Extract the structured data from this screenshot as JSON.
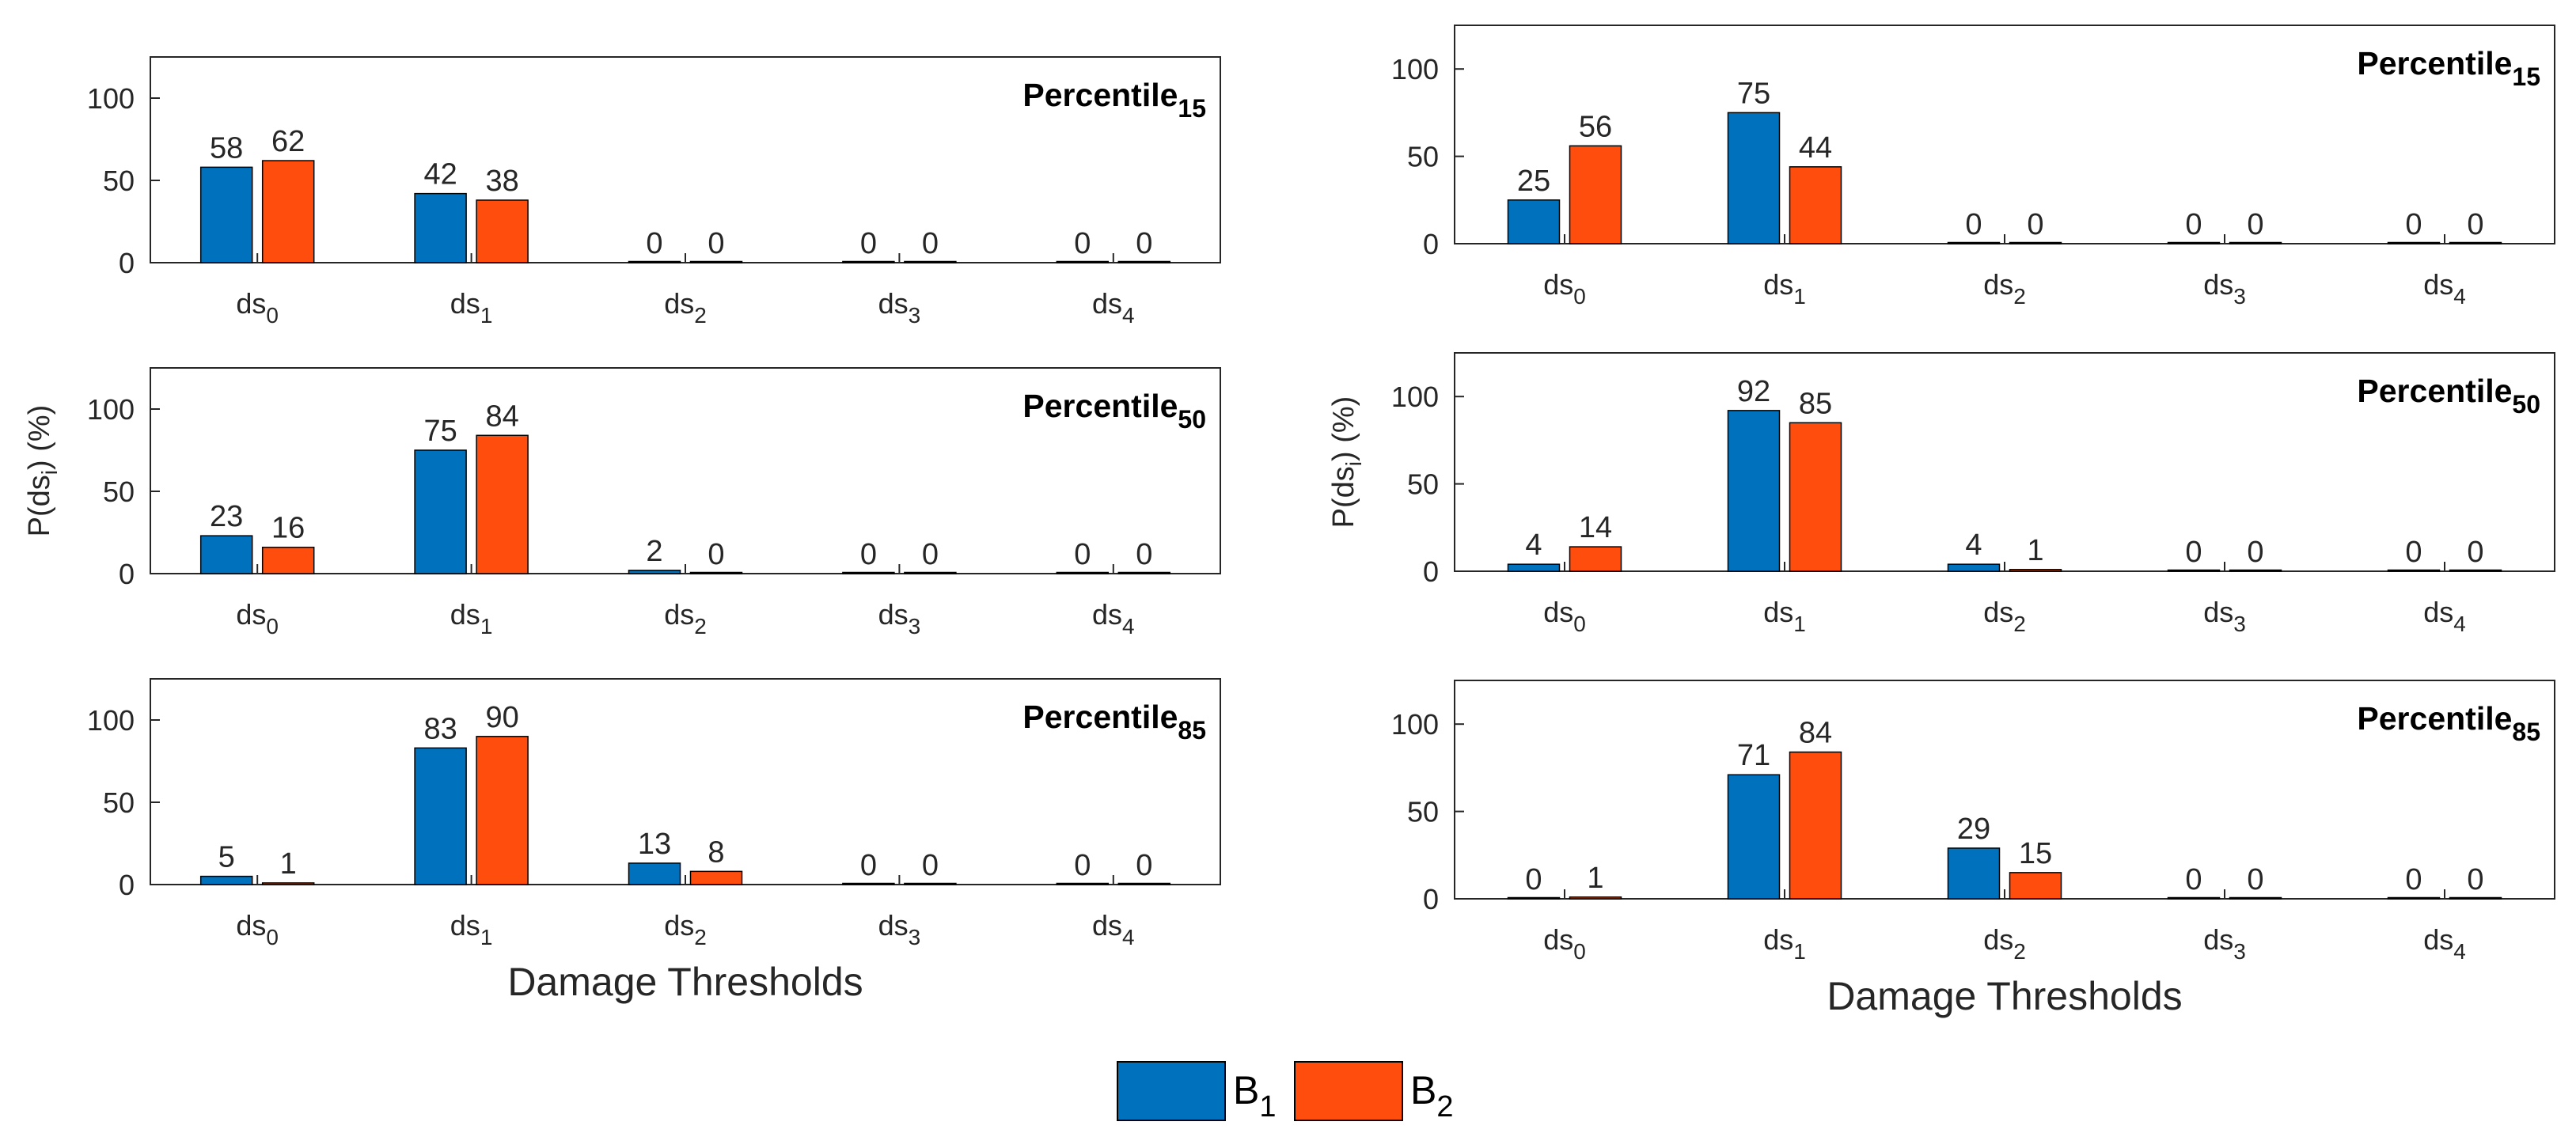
{
  "figure": {
    "bar_colors": {
      "B1": "#0072BD",
      "B2": "#FF4D0D"
    }
  },
  "chart_data": [
    {
      "type": "bar",
      "column": "left",
      "panel": 1,
      "title": "Percentile",
      "title_subscript": "15",
      "categories": [
        {
          "base": "ds",
          "sub": "0"
        },
        {
          "base": "ds",
          "sub": "1"
        },
        {
          "base": "ds",
          "sub": "2"
        },
        {
          "base": "ds",
          "sub": "3"
        },
        {
          "base": "ds",
          "sub": "4"
        }
      ],
      "series": [
        {
          "name": "B1",
          "values": [
            58,
            42,
            0,
            0,
            0
          ]
        },
        {
          "name": "B2",
          "values": [
            62,
            38,
            0,
            0,
            0
          ]
        }
      ],
      "ylim": [
        0,
        125
      ],
      "yticks": [
        0,
        50,
        100
      ],
      "ylabel": "",
      "xlabel": ""
    },
    {
      "type": "bar",
      "column": "left",
      "panel": 2,
      "title": "Percentile",
      "title_subscript": "50",
      "categories": [
        {
          "base": "ds",
          "sub": "0"
        },
        {
          "base": "ds",
          "sub": "1"
        },
        {
          "base": "ds",
          "sub": "2"
        },
        {
          "base": "ds",
          "sub": "3"
        },
        {
          "base": "ds",
          "sub": "4"
        }
      ],
      "series": [
        {
          "name": "B1",
          "values": [
            23,
            75,
            2,
            0,
            0
          ]
        },
        {
          "name": "B2",
          "values": [
            16,
            84,
            0,
            0,
            0
          ]
        }
      ],
      "ylim": [
        0,
        125
      ],
      "yticks": [
        0,
        50,
        100
      ],
      "ylabel": {
        "pre": "P(ds",
        "sub": "i",
        "post": ") (%)"
      },
      "xlabel": ""
    },
    {
      "type": "bar",
      "column": "left",
      "panel": 3,
      "title": "Percentile",
      "title_subscript": "85",
      "categories": [
        {
          "base": "ds",
          "sub": "0"
        },
        {
          "base": "ds",
          "sub": "1"
        },
        {
          "base": "ds",
          "sub": "2"
        },
        {
          "base": "ds",
          "sub": "3"
        },
        {
          "base": "ds",
          "sub": "4"
        }
      ],
      "series": [
        {
          "name": "B1",
          "values": [
            5,
            83,
            13,
            0,
            0
          ]
        },
        {
          "name": "B2",
          "values": [
            1,
            90,
            8,
            0,
            0
          ]
        }
      ],
      "ylim": [
        0,
        125
      ],
      "yticks": [
        0,
        50,
        100
      ],
      "ylabel": "",
      "xlabel": "Damage Thresholds"
    },
    {
      "type": "bar",
      "column": "right",
      "panel": 1,
      "title": "Percentile",
      "title_subscript": "15",
      "categories": [
        {
          "base": "ds",
          "sub": "0"
        },
        {
          "base": "ds",
          "sub": "1"
        },
        {
          "base": "ds",
          "sub": "2"
        },
        {
          "base": "ds",
          "sub": "3"
        },
        {
          "base": "ds",
          "sub": "4"
        }
      ],
      "series": [
        {
          "name": "B1",
          "values": [
            25,
            75,
            0,
            0,
            0
          ]
        },
        {
          "name": "B2",
          "values": [
            56,
            44,
            0,
            0,
            0
          ]
        }
      ],
      "ylim": [
        0,
        125
      ],
      "yticks": [
        0,
        50,
        100
      ],
      "ylabel": "",
      "xlabel": ""
    },
    {
      "type": "bar",
      "column": "right",
      "panel": 2,
      "title": "Percentile",
      "title_subscript": "50",
      "categories": [
        {
          "base": "ds",
          "sub": "0"
        },
        {
          "base": "ds",
          "sub": "1"
        },
        {
          "base": "ds",
          "sub": "2"
        },
        {
          "base": "ds",
          "sub": "3"
        },
        {
          "base": "ds",
          "sub": "4"
        }
      ],
      "series": [
        {
          "name": "B1",
          "values": [
            4,
            92,
            4,
            0,
            0
          ]
        },
        {
          "name": "B2",
          "values": [
            14,
            85,
            1,
            0,
            0
          ]
        }
      ],
      "ylim": [
        0,
        125
      ],
      "yticks": [
        0,
        50,
        100
      ],
      "ylabel": {
        "pre": "P(ds",
        "sub": "i",
        "post": ") (%)"
      },
      "xlabel": ""
    },
    {
      "type": "bar",
      "column": "right",
      "panel": 3,
      "title": "Percentile",
      "title_subscript": "85",
      "categories": [
        {
          "base": "ds",
          "sub": "0"
        },
        {
          "base": "ds",
          "sub": "1"
        },
        {
          "base": "ds",
          "sub": "2"
        },
        {
          "base": "ds",
          "sub": "3"
        },
        {
          "base": "ds",
          "sub": "4"
        }
      ],
      "series": [
        {
          "name": "B1",
          "values": [
            0,
            71,
            29,
            0,
            0
          ]
        },
        {
          "name": "B2",
          "values": [
            1,
            84,
            15,
            0,
            0
          ]
        }
      ],
      "ylim": [
        0,
        125
      ],
      "yticks": [
        0,
        50,
        100
      ],
      "ylabel": "",
      "xlabel": "Damage Thresholds"
    }
  ],
  "legend": {
    "placement": "bottom-center",
    "entries": [
      {
        "series": "B1",
        "base": "B",
        "sub": "1"
      },
      {
        "series": "B2",
        "base": "B",
        "sub": "2"
      }
    ]
  }
}
